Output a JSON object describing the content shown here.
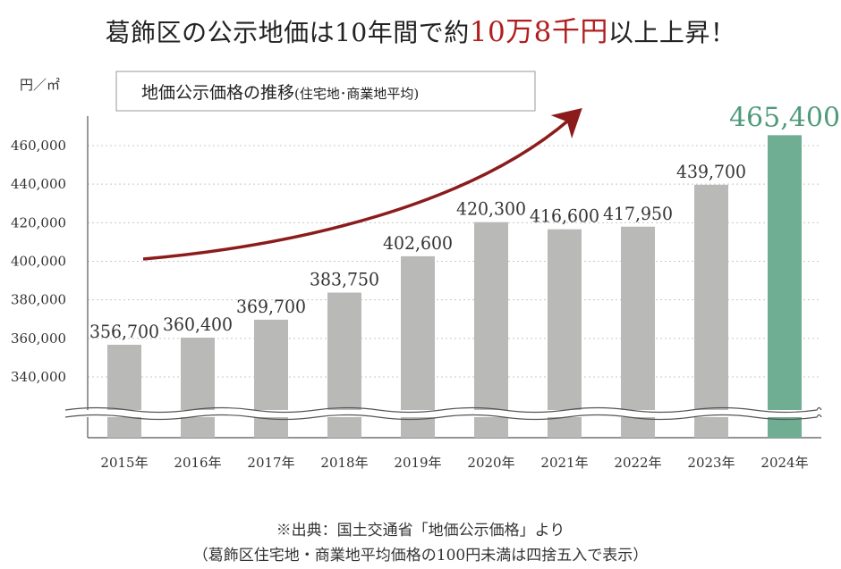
{
  "headline": {
    "prefix": "葛飾区の公示地価は10年間で約",
    "highlight": "10万8千円",
    "suffix": "以上上昇！"
  },
  "colors": {
    "bar": "#b9b9b8",
    "bar_highlight": "#6fae93",
    "value_highlight": "#4f9a7a",
    "arrow": "#8c1c1c",
    "headline_highlight": "#b01e1e"
  },
  "chart_data": {
    "type": "bar",
    "title": "地価公示価格の推移",
    "subtitle": "(住宅地･商業地平均)",
    "unit_label": "円／㎡",
    "categories": [
      "2015年",
      "2016年",
      "2017年",
      "2018年",
      "2019年",
      "2020年",
      "2021年",
      "2022年",
      "2023年",
      "2024年"
    ],
    "values": [
      356700,
      360400,
      369700,
      383750,
      402600,
      420300,
      416600,
      417950,
      439700,
      465400
    ],
    "value_labels": [
      "356,700",
      "360,400",
      "369,700",
      "383,750",
      "402,600",
      "420,300",
      "416,600",
      "417,950",
      "439,700",
      "465,400"
    ],
    "highlight_index": 9,
    "yticks": [
      340000,
      360000,
      380000,
      400000,
      420000,
      440000,
      460000
    ],
    "ytick_labels": [
      "340,000",
      "360,000",
      "380,000",
      "400,000",
      "420,000",
      "440,000",
      "460,000"
    ],
    "ylim": [
      320000,
      470000
    ],
    "axis_break": true,
    "grid": true
  },
  "source": {
    "line1": "※出典：国土交通省「地価公示価格」より",
    "line2": "（葛飾区住宅地・商業地平均価格の100円未満は四捨五入で表示）"
  }
}
